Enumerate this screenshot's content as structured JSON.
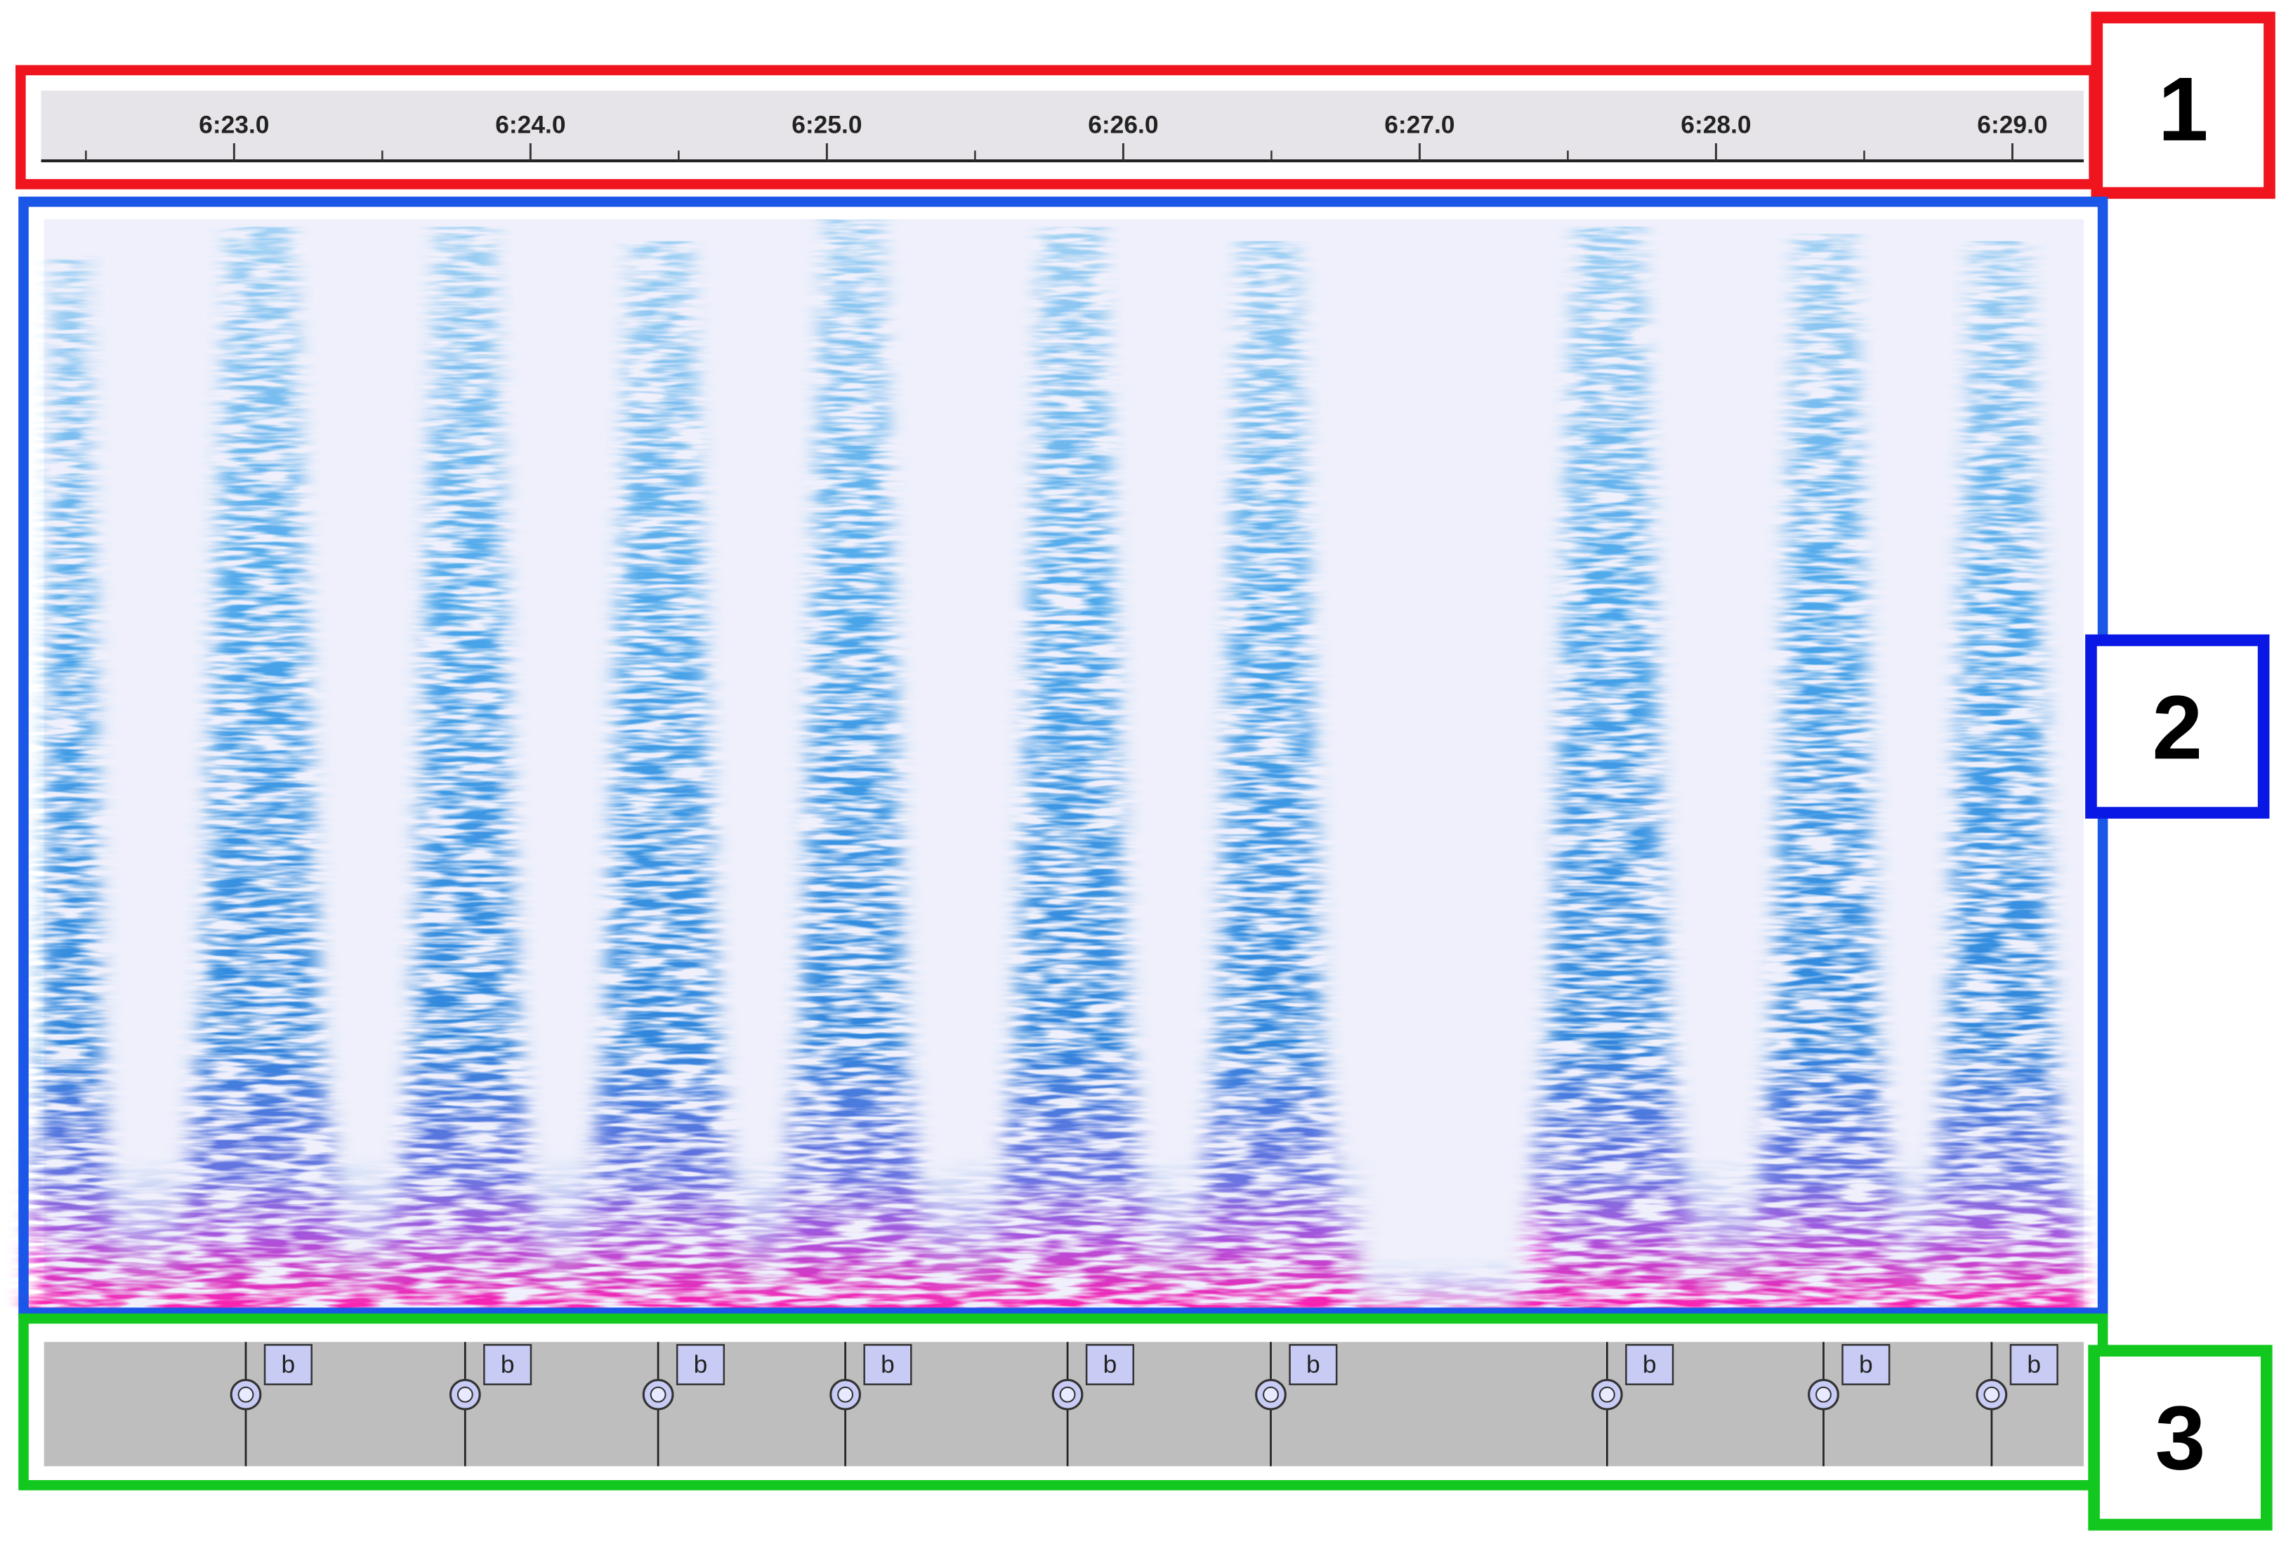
{
  "timeline": {
    "ticks": [
      "6:23.0",
      "6:24.0",
      "6:25.0",
      "6:26.0",
      "6:27.0",
      "6:28.0",
      "6:29.0"
    ]
  },
  "label_track": {
    "labels": [
      "b",
      "b",
      "b",
      "b",
      "b",
      "b",
      "b",
      "b",
      "b"
    ]
  },
  "callouts": [
    "1",
    "2",
    "3"
  ]
}
